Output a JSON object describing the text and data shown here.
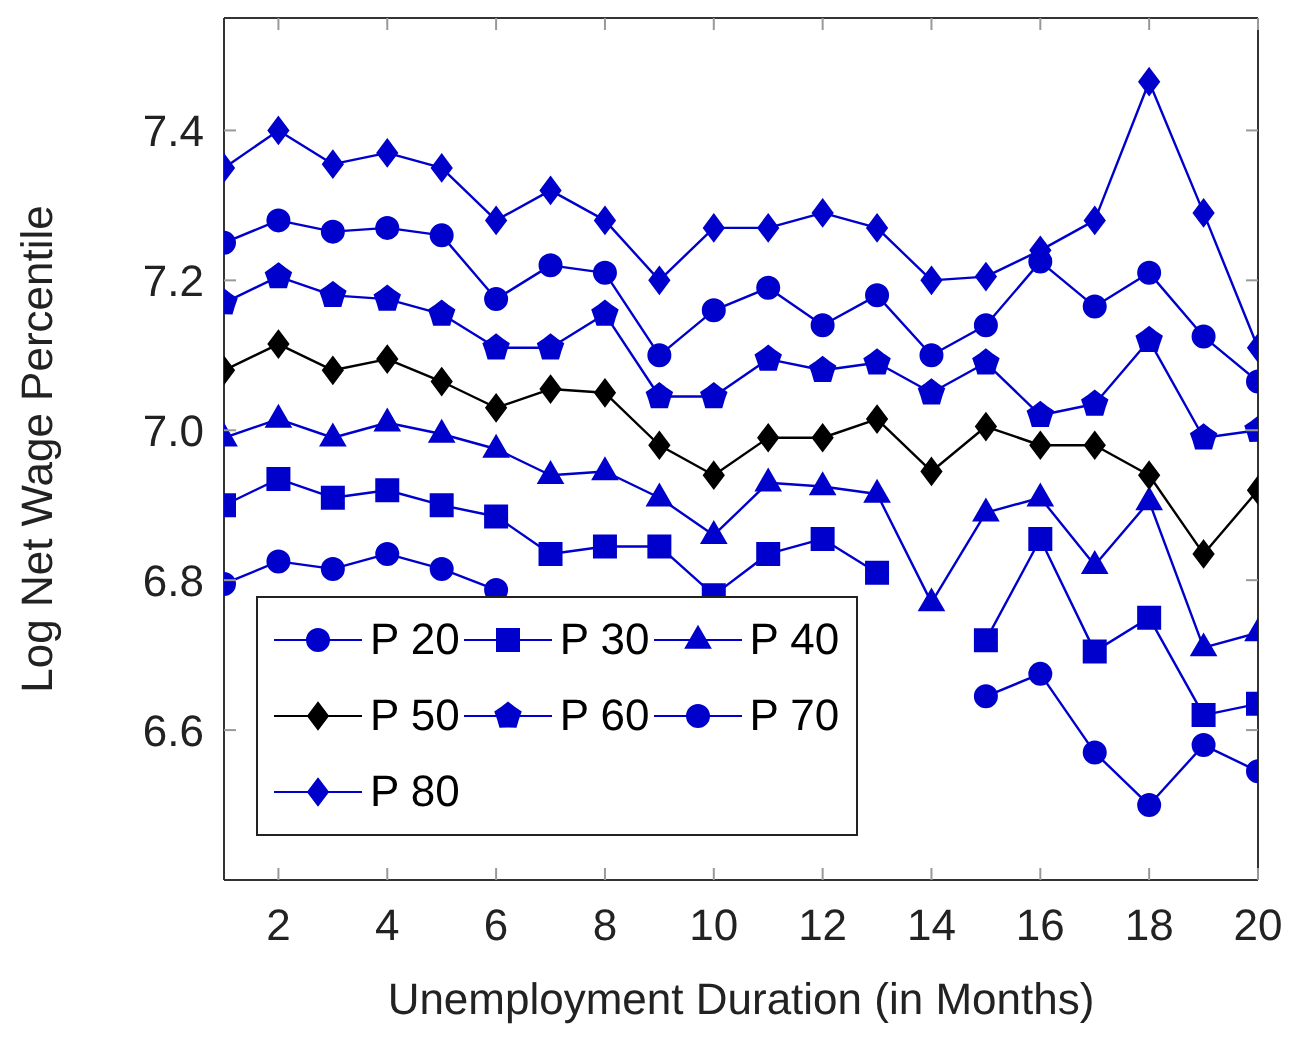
{
  "chart_data": {
    "type": "line",
    "xlabel": "Unemployment Duration (in Months)",
    "ylabel": "Log Net Wage Percentile",
    "x": [
      1,
      2,
      3,
      4,
      5,
      6,
      7,
      8,
      9,
      10,
      11,
      12,
      13,
      14,
      15,
      16,
      17,
      18,
      19,
      20
    ],
    "xlim": [
      1,
      20
    ],
    "xticks": [
      2,
      4,
      6,
      8,
      10,
      12,
      14,
      16,
      18,
      20
    ],
    "ylim": [
      6.4,
      7.55
    ],
    "yticks": [
      6.6,
      6.8,
      {
        "value": 7,
        "label": "7.0"
      },
      7.2,
      7.4
    ],
    "grid": false,
    "legend": "bottom left",
    "line_style": "solid",
    "series": [
      {
        "name": "P 20",
        "color": "#0000cc",
        "marker": "circle",
        "values": [
          6.795,
          6.825,
          6.815,
          6.835,
          6.815,
          6.787,
          null,
          null,
          null,
          null,
          null,
          null,
          null,
          null,
          6.645,
          6.675,
          6.57,
          6.5,
          6.58,
          6.545
        ]
      },
      {
        "name": "P 30",
        "color": "#0000cc",
        "marker": "square",
        "values": [
          6.9,
          6.935,
          6.91,
          6.92,
          6.9,
          6.885,
          6.835,
          6.845,
          6.845,
          6.78,
          6.835,
          6.855,
          6.81,
          null,
          6.72,
          6.855,
          6.705,
          6.75,
          6.62,
          6.635
        ]
      },
      {
        "name": "P 40",
        "color": "#0000cc",
        "marker": "triangle",
        "values": [
          6.99,
          7.015,
          6.99,
          7.01,
          6.995,
          6.975,
          6.94,
          6.945,
          6.91,
          6.86,
          6.93,
          6.925,
          6.915,
          6.77,
          6.89,
          6.91,
          6.82,
          6.905,
          6.71,
          6.73
        ]
      },
      {
        "name": "P 50",
        "color": "#000000",
        "marker": "diamond",
        "values": [
          7.08,
          7.115,
          7.08,
          7.095,
          7.065,
          7.03,
          7.055,
          7.05,
          6.98,
          6.94,
          6.99,
          6.99,
          7.015,
          6.945,
          7.005,
          6.98,
          6.98,
          6.94,
          6.835,
          6.92
        ]
      },
      {
        "name": "P 60",
        "color": "#0000cc",
        "marker": "star",
        "values": [
          7.17,
          7.205,
          7.18,
          7.175,
          7.155,
          7.11,
          7.11,
          7.155,
          7.045,
          7.045,
          7.095,
          7.08,
          7.09,
          7.05,
          7.09,
          7.02,
          7.035,
          7.12,
          6.99,
          7.0
        ]
      },
      {
        "name": "P 70",
        "color": "#0000cc",
        "marker": "circle",
        "values": [
          7.25,
          7.28,
          7.265,
          7.27,
          7.26,
          7.175,
          7.22,
          7.21,
          7.1,
          7.16,
          7.19,
          7.14,
          7.18,
          7.1,
          7.14,
          7.225,
          7.165,
          7.21,
          7.125,
          7.065
        ]
      },
      {
        "name": "P 80",
        "color": "#0000cc",
        "marker": "diamond",
        "values": [
          7.35,
          7.4,
          7.355,
          7.37,
          7.35,
          7.28,
          7.32,
          7.28,
          7.2,
          7.27,
          7.27,
          7.29,
          7.27,
          7.2,
          7.205,
          7.24,
          7.28,
          7.465,
          7.29,
          7.11
        ]
      }
    ]
  }
}
